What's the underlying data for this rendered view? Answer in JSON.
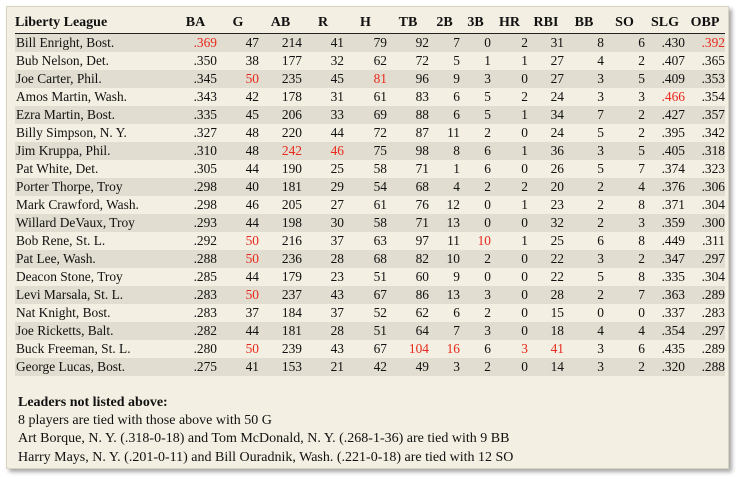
{
  "table": {
    "columns": [
      "Liberty League",
      "BA",
      "G",
      "AB",
      "R",
      "H",
      "TB",
      "2B",
      "3B",
      "HR",
      "RBI",
      "BB",
      "SO",
      "SLG",
      "OBP"
    ],
    "highlight_color": "#e8291c",
    "rows": [
      {
        "cells": [
          "Bill Enright, Bost.",
          ".369",
          "47",
          "214",
          "41",
          "79",
          "92",
          "7",
          "0",
          "2",
          "31",
          "8",
          "6",
          ".430",
          ".392"
        ],
        "red": [
          1,
          14
        ]
      },
      {
        "cells": [
          "Bub Nelson, Det.",
          ".350",
          "38",
          "177",
          "32",
          "62",
          "72",
          "5",
          "1",
          "1",
          "27",
          "4",
          "2",
          ".407",
          ".365"
        ],
        "red": []
      },
      {
        "cells": [
          "Joe Carter, Phil.",
          ".345",
          "50",
          "235",
          "45",
          "81",
          "96",
          "9",
          "3",
          "0",
          "27",
          "3",
          "5",
          ".409",
          ".353"
        ],
        "red": [
          2,
          5
        ]
      },
      {
        "cells": [
          "Amos Martin, Wash.",
          ".343",
          "42",
          "178",
          "31",
          "61",
          "83",
          "6",
          "5",
          "2",
          "24",
          "3",
          "3",
          ".466",
          ".354"
        ],
        "red": [
          13
        ]
      },
      {
        "cells": [
          "Ezra Martin, Bost.",
          ".335",
          "45",
          "206",
          "33",
          "69",
          "88",
          "6",
          "5",
          "1",
          "34",
          "7",
          "2",
          ".427",
          ".357"
        ],
        "red": []
      },
      {
        "cells": [
          "Billy Simpson, N. Y.",
          ".327",
          "48",
          "220",
          "44",
          "72",
          "87",
          "11",
          "2",
          "0",
          "24",
          "5",
          "2",
          ".395",
          ".342"
        ],
        "red": []
      },
      {
        "cells": [
          "Jim Kruppa, Phil.",
          ".310",
          "48",
          "242",
          "46",
          "75",
          "98",
          "8",
          "6",
          "1",
          "36",
          "3",
          "5",
          ".405",
          ".318"
        ],
        "red": [
          3,
          4
        ]
      },
      {
        "cells": [
          "Pat White, Det.",
          ".305",
          "44",
          "190",
          "25",
          "58",
          "71",
          "1",
          "6",
          "0",
          "26",
          "5",
          "7",
          ".374",
          ".323"
        ],
        "red": []
      },
      {
        "cells": [
          "Porter Thorpe, Troy",
          ".298",
          "40",
          "181",
          "29",
          "54",
          "68",
          "4",
          "2",
          "2",
          "20",
          "2",
          "4",
          ".376",
          ".306"
        ],
        "red": []
      },
      {
        "cells": [
          "Mark Crawford, Wash.",
          ".298",
          "46",
          "205",
          "27",
          "61",
          "76",
          "12",
          "0",
          "1",
          "23",
          "2",
          "8",
          ".371",
          ".304"
        ],
        "red": []
      },
      {
        "cells": [
          "Willard DeVaux, Troy",
          ".293",
          "44",
          "198",
          "30",
          "58",
          "71",
          "13",
          "0",
          "0",
          "32",
          "2",
          "3",
          ".359",
          ".300"
        ],
        "red": []
      },
      {
        "cells": [
          "Bob Rene, St. L.",
          ".292",
          "50",
          "216",
          "37",
          "63",
          "97",
          "11",
          "10",
          "1",
          "25",
          "6",
          "8",
          ".449",
          ".311"
        ],
        "red": [
          2,
          8
        ]
      },
      {
        "cells": [
          "Pat Lee, Wash.",
          ".288",
          "50",
          "236",
          "28",
          "68",
          "82",
          "10",
          "2",
          "0",
          "22",
          "3",
          "2",
          ".347",
          ".297"
        ],
        "red": [
          2
        ]
      },
      {
        "cells": [
          "Deacon Stone, Troy",
          ".285",
          "44",
          "179",
          "23",
          "51",
          "60",
          "9",
          "0",
          "0",
          "22",
          "5",
          "8",
          ".335",
          ".304"
        ],
        "red": []
      },
      {
        "cells": [
          "Levi Marsala, St. L.",
          ".283",
          "50",
          "237",
          "43",
          "67",
          "86",
          "13",
          "3",
          "0",
          "28",
          "2",
          "7",
          ".363",
          ".289"
        ],
        "red": [
          2
        ]
      },
      {
        "cells": [
          "Nat Knight, Bost.",
          ".283",
          "37",
          "184",
          "37",
          "52",
          "62",
          "6",
          "2",
          "0",
          "15",
          "0",
          "0",
          ".337",
          ".283"
        ],
        "red": []
      },
      {
        "cells": [
          "Joe Ricketts, Balt.",
          ".282",
          "44",
          "181",
          "28",
          "51",
          "64",
          "7",
          "3",
          "0",
          "18",
          "4",
          "4",
          ".354",
          ".297"
        ],
        "red": []
      },
      {
        "cells": [
          "Buck Freeman, St. L.",
          ".280",
          "50",
          "239",
          "43",
          "67",
          "104",
          "16",
          "6",
          "3",
          "41",
          "3",
          "6",
          ".435",
          ".289"
        ],
        "red": [
          2,
          6,
          7,
          9,
          10
        ]
      },
      {
        "cells": [
          "George Lucas, Bost.",
          ".275",
          "41",
          "153",
          "21",
          "42",
          "49",
          "3",
          "2",
          "0",
          "14",
          "3",
          "2",
          ".320",
          ".288"
        ],
        "red": []
      }
    ]
  },
  "notes": {
    "heading": "Leaders not listed above:",
    "lines": [
      "8 players are tied with those above with 50 G",
      "Art Borque, N. Y. (.318-0-18) and Tom McDonald, N. Y. (.268-1-36) are tied with 9 BB",
      "Harry Mays, N. Y. (.201-0-11) and Bill Ouradnik, Wash. (.221-0-18) are tied with 12 SO"
    ]
  }
}
